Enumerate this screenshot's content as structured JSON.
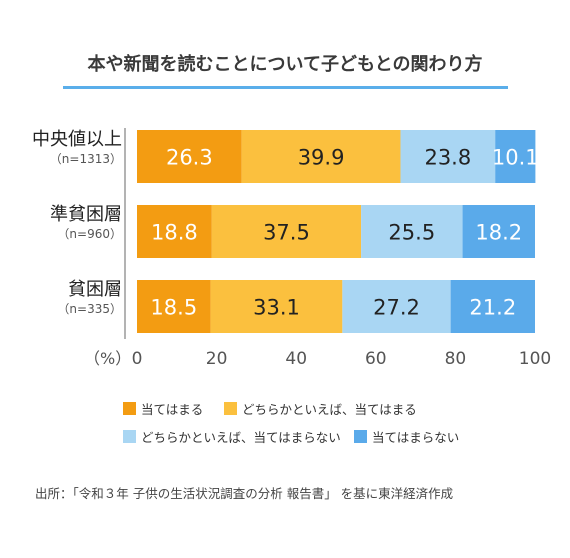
{
  "chart_data": {
    "type": "bar",
    "orientation": "horizontal",
    "stacked": true,
    "title": "本や新聞を読むことについて子どもとの関わり方",
    "categories": [
      {
        "name": "中央値以上",
        "sub": "（n=1313）"
      },
      {
        "name": "準貧困層",
        "sub": "（n=960）"
      },
      {
        "name": "貧困層",
        "sub": "（n=335）"
      }
    ],
    "series": [
      {
        "name": "当てはまる",
        "color": "#f39c12",
        "label_color": "#ffffff",
        "values": [
          26.3,
          18.8,
          18.5
        ]
      },
      {
        "name": "どちらかといえば、当てはまる",
        "color": "#fbc03e",
        "label_color": "#222222",
        "values": [
          39.9,
          37.5,
          33.1
        ]
      },
      {
        "name": "どちらかといえば、当てはまらない",
        "color": "#a9d6f3",
        "label_color": "#222222",
        "values": [
          23.8,
          25.5,
          27.2
        ]
      },
      {
        "name": "当てはまらない",
        "color": "#5aaaea",
        "label_color": "#ffffff",
        "values": [
          10.1,
          18.2,
          21.2
        ]
      }
    ],
    "xlim": [
      0,
      100
    ],
    "xticks": [
      0,
      20,
      40,
      60,
      80,
      100
    ],
    "x_unit_label": "（%）",
    "grid": false,
    "legend_position": "bottom"
  },
  "source_note": "出所：「令和３年 子供の生活状況調査の分析 報告書」 を基に東洋経済作成"
}
